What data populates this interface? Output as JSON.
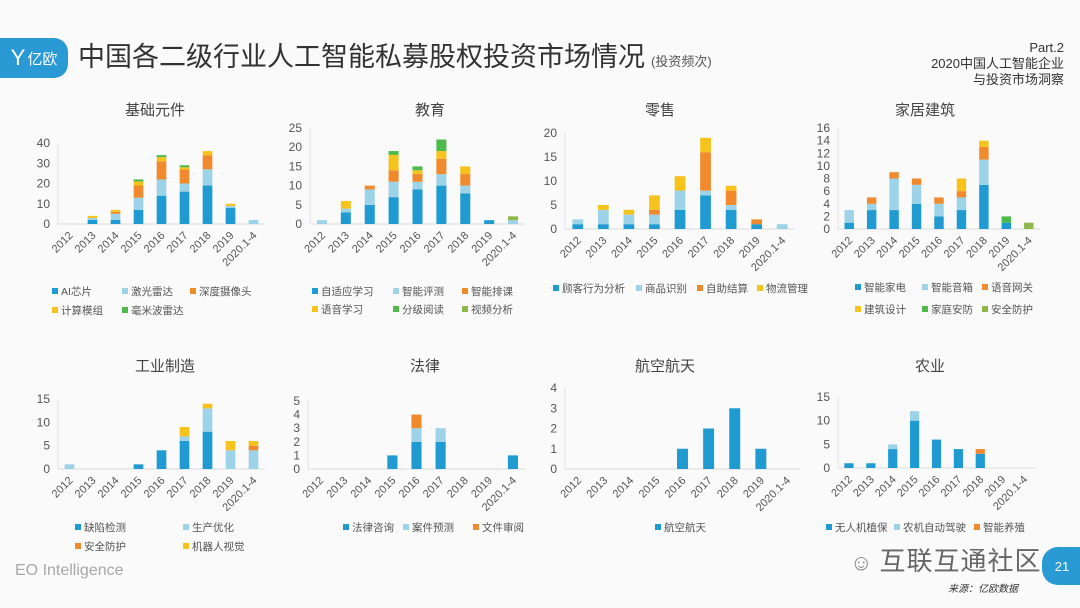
{
  "header": {
    "logo_text": "亿欧",
    "title": "中国各二级行业人工智能私募股权投资市场情况",
    "subtitle": "(投资频次)",
    "part": "Part.2",
    "report_line1": "2020中国人工智能企业",
    "report_line2": "与投资市场洞察"
  },
  "footer": {
    "brand": "EO Intelligence",
    "watermark": "互联互通社区",
    "source": "来源：亿欧数据",
    "page_number": "21"
  },
  "colors": {
    "accent": "#2a9ad4",
    "blue": "#1f9bd1",
    "light_blue": "#9dd3e8",
    "orange": "#f08a2c",
    "yellow": "#f6c31c",
    "green": "#4dba4a",
    "olive": "#8fb84a"
  },
  "chart_data": [
    {
      "type": "bar",
      "stacked": true,
      "title": "基础元件",
      "categories": [
        "2012",
        "2013",
        "2014",
        "2015",
        "2016",
        "2017",
        "2018",
        "2019",
        "2020.1-4"
      ],
      "ylim": [
        0,
        40
      ],
      "yticks": [
        0,
        10,
        20,
        30,
        40
      ],
      "legend": "bottom",
      "series": [
        {
          "name": "AI芯片",
          "color": "#1f9bd1",
          "values": [
            0,
            2,
            2,
            7,
            14,
            16,
            19,
            8,
            0
          ]
        },
        {
          "name": "激光雷达",
          "color": "#9dd3e8",
          "values": [
            0,
            1,
            3,
            6,
            8,
            4,
            8,
            1,
            2
          ]
        },
        {
          "name": "深度摄像头",
          "color": "#f08a2c",
          "values": [
            0,
            0,
            1,
            6,
            9,
            7,
            7,
            0,
            0
          ]
        },
        {
          "name": "计算模组",
          "color": "#f6c31c",
          "values": [
            0,
            1,
            1,
            2,
            2,
            1,
            2,
            1,
            0
          ]
        },
        {
          "name": "毫米波雷达",
          "color": "#4dba4a",
          "values": [
            0,
            0,
            0,
            1,
            1,
            1,
            0,
            0,
            0
          ]
        }
      ]
    },
    {
      "type": "bar",
      "stacked": true,
      "title": "教育",
      "categories": [
        "2012",
        "2013",
        "2014",
        "2015",
        "2016",
        "2017",
        "2018",
        "2019",
        "2020.1-4"
      ],
      "ylim": [
        0,
        25
      ],
      "yticks": [
        0,
        5,
        10,
        15,
        20,
        25
      ],
      "legend": "bottom",
      "series": [
        {
          "name": "自适应学习",
          "color": "#1f9bd1",
          "values": [
            0,
            3,
            5,
            7,
            9,
            10,
            8,
            1,
            0
          ]
        },
        {
          "name": "智能评测",
          "color": "#9dd3e8",
          "values": [
            1,
            1,
            4,
            4,
            2,
            3,
            2,
            0,
            1
          ]
        },
        {
          "name": "智能排课",
          "color": "#f08a2c",
          "values": [
            0,
            0,
            1,
            3,
            2,
            4,
            3,
            0,
            0
          ]
        },
        {
          "name": "语音学习",
          "color": "#f6c31c",
          "values": [
            0,
            2,
            0,
            4,
            1,
            2,
            2,
            0,
            0
          ]
        },
        {
          "name": "分级阅读",
          "color": "#4dba4a",
          "values": [
            0,
            0,
            0,
            1,
            1,
            3,
            0,
            0,
            0
          ]
        },
        {
          "name": "视频分析",
          "color": "#8fb84a",
          "values": [
            0,
            0,
            0,
            0,
            0,
            0,
            0,
            0,
            1
          ]
        }
      ]
    },
    {
      "type": "bar",
      "stacked": true,
      "title": "零售",
      "categories": [
        "2012",
        "2013",
        "2014",
        "2015",
        "2016",
        "2017",
        "2018",
        "2019",
        "2020.1-4"
      ],
      "ylim": [
        0,
        20
      ],
      "yticks": [
        0,
        5,
        10,
        15,
        20
      ],
      "legend": "bottom",
      "series": [
        {
          "name": "顾客行为分析",
          "color": "#1f9bd1",
          "values": [
            1,
            1,
            1,
            1,
            4,
            7,
            4,
            1,
            0
          ]
        },
        {
          "name": "商品识别",
          "color": "#9dd3e8",
          "values": [
            1,
            3,
            2,
            2,
            4,
            1,
            1,
            0,
            1
          ]
        },
        {
          "name": "自助结算",
          "color": "#f08a2c",
          "values": [
            0,
            0,
            0,
            1,
            0,
            8,
            3,
            1,
            0
          ]
        },
        {
          "name": "物流管理",
          "color": "#f6c31c",
          "values": [
            0,
            1,
            1,
            3,
            3,
            3,
            1,
            0,
            0
          ]
        }
      ]
    },
    {
      "type": "bar",
      "stacked": true,
      "title": "家居建筑",
      "categories": [
        "2012",
        "2013",
        "2014",
        "2015",
        "2016",
        "2017",
        "2018",
        "2019",
        "2020.1-4"
      ],
      "ylim": [
        0,
        16
      ],
      "yticks": [
        0,
        2,
        4,
        6,
        8,
        10,
        12,
        14,
        16
      ],
      "legend": "bottom",
      "series": [
        {
          "name": "智能家电",
          "color": "#1f9bd1",
          "values": [
            1,
            3,
            3,
            4,
            2,
            3,
            7,
            1,
            0
          ]
        },
        {
          "name": "智能音箱",
          "color": "#9dd3e8",
          "values": [
            2,
            1,
            5,
            3,
            2,
            2,
            4,
            0,
            0
          ]
        },
        {
          "name": "语音网关",
          "color": "#f08a2c",
          "values": [
            0,
            1,
            1,
            1,
            1,
            1,
            2,
            0,
            0
          ]
        },
        {
          "name": "建筑设计",
          "color": "#f6c31c",
          "values": [
            0,
            0,
            0,
            0,
            0,
            2,
            1,
            0,
            0
          ]
        },
        {
          "name": "家庭安防",
          "color": "#4dba4a",
          "values": [
            0,
            0,
            0,
            0,
            0,
            0,
            0,
            1,
            0
          ]
        },
        {
          "name": "安全防护",
          "color": "#8fb84a",
          "values": [
            0,
            0,
            0,
            0,
            0,
            0,
            0,
            0,
            1
          ]
        }
      ]
    },
    {
      "type": "bar",
      "stacked": true,
      "title": "工业制造",
      "categories": [
        "2012",
        "2013",
        "2014",
        "2015",
        "2016",
        "2017",
        "2018",
        "2019",
        "2020.1-4"
      ],
      "ylim": [
        0,
        15
      ],
      "yticks": [
        0,
        5,
        10,
        15
      ],
      "legend": "bottom",
      "series": [
        {
          "name": "缺陷检测",
          "color": "#1f9bd1",
          "values": [
            0,
            0,
            0,
            1,
            4,
            6,
            8,
            0,
            0
          ]
        },
        {
          "name": "生产优化",
          "color": "#9dd3e8",
          "values": [
            1,
            0,
            0,
            0,
            0,
            1,
            5,
            4,
            4
          ]
        },
        {
          "name": "安全防护",
          "color": "#f08a2c",
          "values": [
            0,
            0,
            0,
            0,
            0,
            0,
            0,
            0,
            1
          ]
        },
        {
          "name": "机器人视觉",
          "color": "#f6c31c",
          "values": [
            0,
            0,
            0,
            0,
            0,
            2,
            1,
            2,
            1
          ]
        }
      ]
    },
    {
      "type": "bar",
      "stacked": true,
      "title": "法律",
      "categories": [
        "2012",
        "2013",
        "2014",
        "2015",
        "2016",
        "2017",
        "2018",
        "2019",
        "2020.1-4"
      ],
      "ylim": [
        0,
        5
      ],
      "yticks": [
        0,
        1,
        2,
        3,
        4,
        5
      ],
      "legend": "bottom",
      "series": [
        {
          "name": "法律咨询",
          "color": "#1f9bd1",
          "values": [
            0,
            0,
            0,
            1,
            2,
            2,
            0,
            0,
            1
          ]
        },
        {
          "name": "案件预测",
          "color": "#9dd3e8",
          "values": [
            0,
            0,
            0,
            0,
            1,
            1,
            0,
            0,
            0
          ]
        },
        {
          "name": "文件审阅",
          "color": "#f08a2c",
          "values": [
            0,
            0,
            0,
            0,
            1,
            0,
            0,
            0,
            0
          ]
        }
      ]
    },
    {
      "type": "bar",
      "stacked": true,
      "title": "航空航天",
      "categories": [
        "2012",
        "2013",
        "2014",
        "2015",
        "2016",
        "2017",
        "2018",
        "2019",
        "2020.1-4"
      ],
      "ylim": [
        0,
        4
      ],
      "yticks": [
        0,
        1,
        2,
        3,
        4
      ],
      "legend": "bottom",
      "series": [
        {
          "name": "航空航天",
          "color": "#1f9bd1",
          "values": [
            0,
            0,
            0,
            0,
            1,
            2,
            3,
            1,
            0
          ]
        }
      ]
    },
    {
      "type": "bar",
      "stacked": true,
      "title": "农业",
      "categories": [
        "2012",
        "2013",
        "2014",
        "2015",
        "2016",
        "2017",
        "2018",
        "2019",
        "2020.1-4"
      ],
      "ylim": [
        0,
        15
      ],
      "yticks": [
        0,
        5,
        10,
        15
      ],
      "legend": "bottom",
      "series": [
        {
          "name": "无人机植保",
          "color": "#1f9bd1",
          "values": [
            1,
            1,
            4,
            10,
            6,
            4,
            3,
            0,
            0
          ]
        },
        {
          "name": "农机自动驾驶",
          "color": "#9dd3e8",
          "values": [
            0,
            0,
            1,
            2,
            0,
            0,
            0,
            0,
            0
          ]
        },
        {
          "name": "智能养殖",
          "color": "#f08a2c",
          "values": [
            0,
            0,
            0,
            0,
            0,
            0,
            1,
            0,
            0
          ]
        }
      ]
    }
  ]
}
